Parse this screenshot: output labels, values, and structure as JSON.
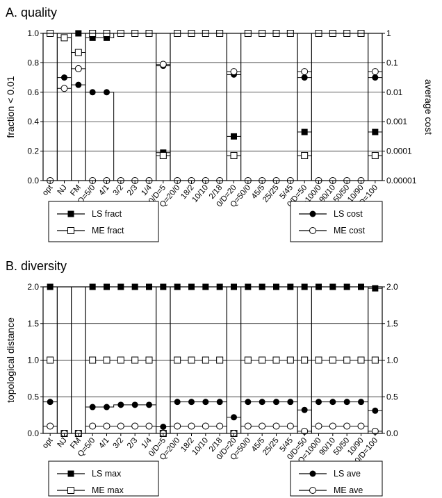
{
  "chart_data": [
    {
      "type": "line",
      "title": "A. quality",
      "ylabel": "fraction < 0.01",
      "y2label": "average cost",
      "ylim": [
        0,
        1
      ],
      "yticks": [
        "0.0",
        "0.2",
        "0.4",
        "0.6",
        "0.8",
        "1.0"
      ],
      "y2scale": "log",
      "y2lim": [
        1e-05,
        1
      ],
      "y2ticks": [
        "0.00001",
        "0.0001",
        "0.001",
        "0.01",
        "0.1",
        "1"
      ],
      "grid": true,
      "categories": [
        "opt",
        "NJ",
        "FM",
        "Q=5/0",
        "4/1",
        "3/2",
        "2/3",
        "1/4",
        "0/D=5",
        "Q=20/0",
        "18/2",
        "10/10",
        "2/18",
        "0/D=20",
        "Q=50/0",
        "45/5",
        "25/25",
        "5/45",
        "0/D=50",
        "Q=100/0",
        "90/10",
        "50/50",
        "10/90",
        "0/D=100"
      ],
      "series": [
        {
          "name": "LS fract",
          "axis": "left",
          "marker": "filled-square",
          "values": [
            1.0,
            0.97,
            1.0,
            0.97,
            0.97,
            1.0,
            1.0,
            1.0,
            0.19,
            1.0,
            1.0,
            1.0,
            1.0,
            0.3,
            1.0,
            1.0,
            1.0,
            1.0,
            0.33,
            1.0,
            1.0,
            1.0,
            1.0,
            0.33
          ]
        },
        {
          "name": "ME fract",
          "axis": "left",
          "marker": "open-square",
          "values": [
            1.0,
            0.97,
            0.87,
            1.0,
            1.0,
            1.0,
            1.0,
            1.0,
            0.17,
            1.0,
            1.0,
            1.0,
            1.0,
            0.17,
            1.0,
            1.0,
            1.0,
            1.0,
            0.17,
            1.0,
            1.0,
            1.0,
            1.0,
            0.17
          ]
        },
        {
          "name": "LS cost",
          "axis": "right",
          "marker": "filled-circle",
          "values": [
            1e-05,
            0.0316,
            0.0178,
            0.01,
            0.01,
            1e-05,
            1e-05,
            1e-05,
            0.0794,
            1e-05,
            1e-05,
            1e-05,
            1e-05,
            0.0398,
            1e-05,
            1e-05,
            1e-05,
            1e-05,
            0.0316,
            1e-05,
            1e-05,
            1e-05,
            1e-05,
            0.0316
          ]
        },
        {
          "name": "ME cost",
          "axis": "right",
          "marker": "open-circle",
          "values": [
            1e-05,
            0.0135,
            0.063,
            1e-05,
            1e-05,
            1e-05,
            1e-05,
            1e-05,
            0.0891,
            1e-05,
            1e-05,
            1e-05,
            1e-05,
            0.0501,
            1e-05,
            1e-05,
            1e-05,
            1e-05,
            0.0501,
            1e-05,
            1e-05,
            1e-05,
            1e-05,
            0.0501
          ]
        }
      ]
    },
    {
      "type": "line",
      "title": "B. diversity",
      "ylabel": "topological distance",
      "ylim": [
        0,
        2
      ],
      "yticks": [
        "0.0",
        "0.5",
        "1.0",
        "1.5",
        "2.0"
      ],
      "y2ticks": [
        "0.0",
        "0.5",
        "1.0",
        "1.5",
        "2.0"
      ],
      "grid": true,
      "categories": [
        "opt",
        "NJ",
        "FM",
        "Q=5/0",
        "4/1",
        "3/2",
        "2/3",
        "1/4",
        "0/D=5",
        "Q=20/0",
        "18/2",
        "10/10",
        "2/18",
        "0/D=20",
        "Q=50/0",
        "45/5",
        "25/25",
        "5/45",
        "0/D=50",
        "Q=100/0",
        "90/10",
        "50/50",
        "10/90",
        "0/D=100"
      ],
      "series": [
        {
          "name": "LS max",
          "marker": "filled-square",
          "values": [
            2.0,
            0.0,
            0.0,
            2.0,
            2.0,
            2.0,
            2.0,
            2.0,
            2.0,
            2.0,
            2.0,
            2.0,
            2.0,
            2.0,
            2.0,
            2.0,
            2.0,
            2.0,
            2.0,
            2.0,
            2.0,
            2.0,
            2.0,
            1.98
          ]
        },
        {
          "name": "ME max",
          "marker": "open-square",
          "values": [
            1.0,
            0.0,
            0.0,
            1.0,
            1.0,
            1.0,
            1.0,
            1.0,
            0.0,
            1.0,
            1.0,
            1.0,
            1.0,
            0.0,
            1.0,
            1.0,
            1.0,
            1.0,
            1.0,
            1.0,
            1.0,
            1.0,
            1.0,
            1.0
          ]
        },
        {
          "name": "LS ave",
          "marker": "filled-circle",
          "values": [
            0.43,
            0.0,
            0.0,
            0.36,
            0.36,
            0.39,
            0.39,
            0.39,
            0.09,
            0.43,
            0.43,
            0.43,
            0.43,
            0.22,
            0.43,
            0.43,
            0.43,
            0.43,
            0.32,
            0.43,
            0.43,
            0.43,
            0.43,
            0.31
          ]
        },
        {
          "name": "ME ave",
          "marker": "open-circle",
          "values": [
            0.1,
            0.0,
            0.0,
            0.1,
            0.1,
            0.1,
            0.1,
            0.1,
            0.0,
            0.1,
            0.1,
            0.1,
            0.1,
            0.0,
            0.1,
            0.1,
            0.1,
            0.1,
            0.03,
            0.1,
            0.1,
            0.1,
            0.1,
            0.03
          ]
        }
      ]
    }
  ]
}
